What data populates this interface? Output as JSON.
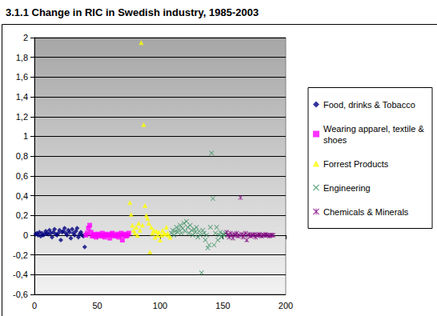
{
  "chart_data": {
    "type": "scatter",
    "title": "3.1.1 Change in RIC in Swedish industry, 1985-2003",
    "xlim": [
      0,
      200
    ],
    "xticks": [
      0,
      50,
      100,
      150,
      200
    ],
    "ylim": [
      -0.6,
      2
    ],
    "yticks": [
      {
        "value": -0.6,
        "label": "-0,6"
      },
      {
        "value": -0.4,
        "label": "-0,4"
      },
      {
        "value": -0.2,
        "label": "-0,2"
      },
      0,
      {
        "value": 0.2,
        "label": "0,2"
      },
      {
        "value": 0.4,
        "label": "0,4"
      },
      {
        "value": 0.6,
        "label": "0,6"
      },
      {
        "value": 0.8,
        "label": "0,8"
      },
      1,
      {
        "value": 1.2,
        "label": "1,2"
      },
      {
        "value": 1.4,
        "label": "1,4"
      },
      {
        "value": 1.6,
        "label": "1,6"
      },
      {
        "value": 1.8,
        "label": "1,8"
      },
      2
    ],
    "grid": true,
    "legend": "right",
    "series": [
      {
        "name": "Food, drinks & Tobacco",
        "color": "#000080",
        "marker": "diamond",
        "x": [
          1,
          2,
          3,
          4,
          5,
          6,
          7,
          8,
          9,
          10,
          11,
          12,
          13,
          14,
          15,
          16,
          17,
          18,
          19,
          20,
          21,
          22,
          23,
          24,
          25,
          26,
          27,
          28,
          29,
          30,
          31,
          32,
          33,
          34,
          35,
          36,
          37,
          38,
          39,
          40
        ],
        "values": [
          0.01,
          0.02,
          0.0,
          0.03,
          -0.01,
          0.02,
          0.0,
          0.01,
          0.04,
          0.02,
          0.01,
          0.05,
          0.02,
          -0.02,
          0.03,
          0.06,
          0.01,
          0.0,
          0.02,
          0.05,
          -0.05,
          0.03,
          0.04,
          0.07,
          0.02,
          0.0,
          0.05,
          0.03,
          -0.03,
          0.06,
          0.02,
          0.0,
          0.04,
          0.07,
          -0.02,
          0.01,
          0.03,
          0.0,
          -0.01,
          -0.12
        ]
      },
      {
        "name": "Wearing apparel, textile & shoes",
        "color": "#ff00ff",
        "marker": "square",
        "x": [
          41,
          42,
          43,
          44,
          45,
          46,
          47,
          48,
          49,
          50,
          51,
          52,
          53,
          54,
          55,
          56,
          57,
          58,
          59,
          60,
          61,
          62,
          63,
          64,
          65,
          66,
          67,
          68,
          69,
          70,
          71,
          72,
          73,
          74,
          75
        ],
        "values": [
          0.0,
          0.02,
          0.07,
          0.1,
          0.03,
          -0.01,
          0.0,
          0.01,
          -0.02,
          0.0,
          0.01,
          0.0,
          -0.01,
          0.02,
          0.0,
          -0.02,
          0.01,
          0.0,
          0.0,
          -0.03,
          0.01,
          0.02,
          0.0,
          -0.01,
          0.0,
          0.01,
          -0.02,
          0.0,
          0.02,
          -0.05,
          0.0,
          0.01,
          -0.01,
          0.0,
          0.02
        ]
      },
      {
        "name": "Forrest Products",
        "color": "#ffff00",
        "marker": "triangle",
        "x": [
          76,
          77,
          78,
          79,
          80,
          81,
          82,
          83,
          84,
          85,
          86,
          87,
          88,
          89,
          90,
          91,
          92,
          93,
          94,
          95,
          96,
          97,
          98,
          99,
          100,
          101,
          102,
          103,
          104,
          105,
          106,
          107,
          108
        ],
        "values": [
          0.33,
          0.21,
          0.1,
          0.05,
          0.02,
          0.08,
          0.0,
          0.12,
          0.05,
          1.95,
          0.1,
          1.12,
          0.3,
          0.2,
          0.17,
          0.12,
          -0.17,
          0.08,
          0.02,
          0.05,
          -0.02,
          0.04,
          0.0,
          0.03,
          -0.05,
          0.0,
          0.05,
          0.02,
          0.01,
          0.08,
          0.02,
          0.0,
          -0.02
        ]
      },
      {
        "name": "Engineering",
        "color": "#2e8b57",
        "marker": "x",
        "x": [
          109,
          110,
          111,
          112,
          113,
          114,
          115,
          116,
          117,
          118,
          119,
          120,
          121,
          122,
          123,
          124,
          125,
          126,
          127,
          128,
          129,
          130,
          131,
          132,
          133,
          134,
          135,
          136,
          137,
          138,
          139,
          140,
          141,
          142,
          143,
          144,
          145,
          146,
          147,
          148,
          149,
          150,
          151,
          152
        ],
        "values": [
          0.02,
          0.05,
          0.0,
          0.04,
          0.08,
          0.03,
          0.06,
          0.1,
          0.02,
          0.07,
          0.12,
          0.04,
          0.14,
          0.08,
          0.02,
          0.1,
          0.05,
          0.0,
          0.06,
          0.03,
          0.08,
          -0.02,
          0.04,
          0.0,
          -0.38,
          0.05,
          0.02,
          -0.05,
          0.0,
          -0.13,
          -0.1,
          0.08,
          0.83,
          0.37,
          -0.1,
          0.02,
          0.08,
          -0.05,
          0.0,
          0.03,
          -0.02,
          0.01,
          0.0,
          0.02
        ]
      },
      {
        "name": "Chemicals & Minerals",
        "color": "#800080",
        "marker": "star",
        "x": [
          153,
          154,
          155,
          156,
          157,
          158,
          159,
          160,
          161,
          162,
          163,
          164,
          165,
          166,
          167,
          168,
          169,
          170,
          171,
          172,
          173,
          174,
          175,
          176,
          177,
          178,
          179,
          180,
          181,
          182,
          183,
          184,
          185,
          186,
          187,
          188,
          189,
          190
        ],
        "values": [
          0.03,
          0.0,
          -0.02,
          0.02,
          0.0,
          -0.03,
          0.01,
          0.0,
          0.02,
          -0.01,
          0.0,
          0.38,
          0.01,
          -0.02,
          0.0,
          0.02,
          -0.05,
          0.0,
          0.01,
          -0.01,
          0.0,
          0.0,
          0.01,
          -0.02,
          0.0,
          0.0,
          0.01,
          0.0,
          -0.01,
          0.0,
          0.0,
          0.01,
          0.0,
          0.0,
          -0.01,
          0.0,
          0.0,
          0.0
        ]
      }
    ]
  }
}
